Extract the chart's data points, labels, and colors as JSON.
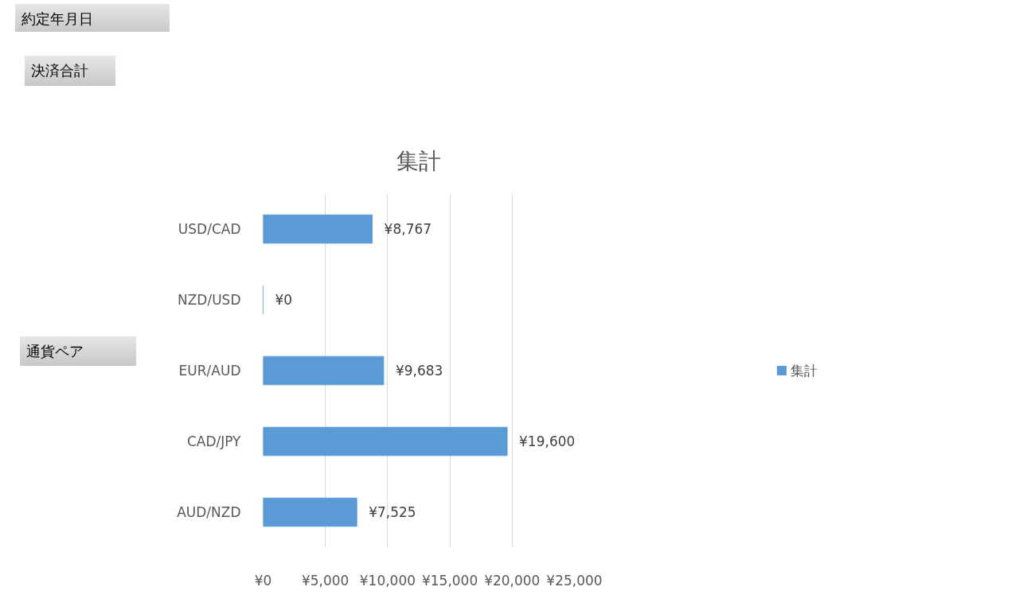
{
  "chart_data": {
    "type": "bar",
    "title": "集計",
    "orientation": "horizontal",
    "categories": [
      "USD/CAD",
      "NZD/USD",
      "EUR/AUD",
      "CAD/JPY",
      "AUD/NZD"
    ],
    "series": [
      {
        "name": "集計",
        "color": "#5b9bd5",
        "values": [
          8767,
          0,
          9683,
          19600,
          7525
        ],
        "value_labels": [
          "¥8,767",
          "¥0",
          "¥9,683",
          "¥19,600",
          "¥7,525"
        ]
      }
    ],
    "xlim": [
      0,
      25000
    ],
    "xticks": [
      {
        "value": 0,
        "label": "¥0"
      },
      {
        "value": 5000,
        "label": "¥5,000"
      },
      {
        "value": 10000,
        "label": "¥10,000"
      },
      {
        "value": 15000,
        "label": "¥15,000"
      },
      {
        "value": 20000,
        "label": "¥20,000"
      },
      {
        "value": 25000,
        "label": "¥25,000"
      }
    ],
    "grid": "x",
    "legend": "right",
    "annotations": [
      "約定年月日",
      "決済合計",
      "通貨ペア"
    ]
  }
}
